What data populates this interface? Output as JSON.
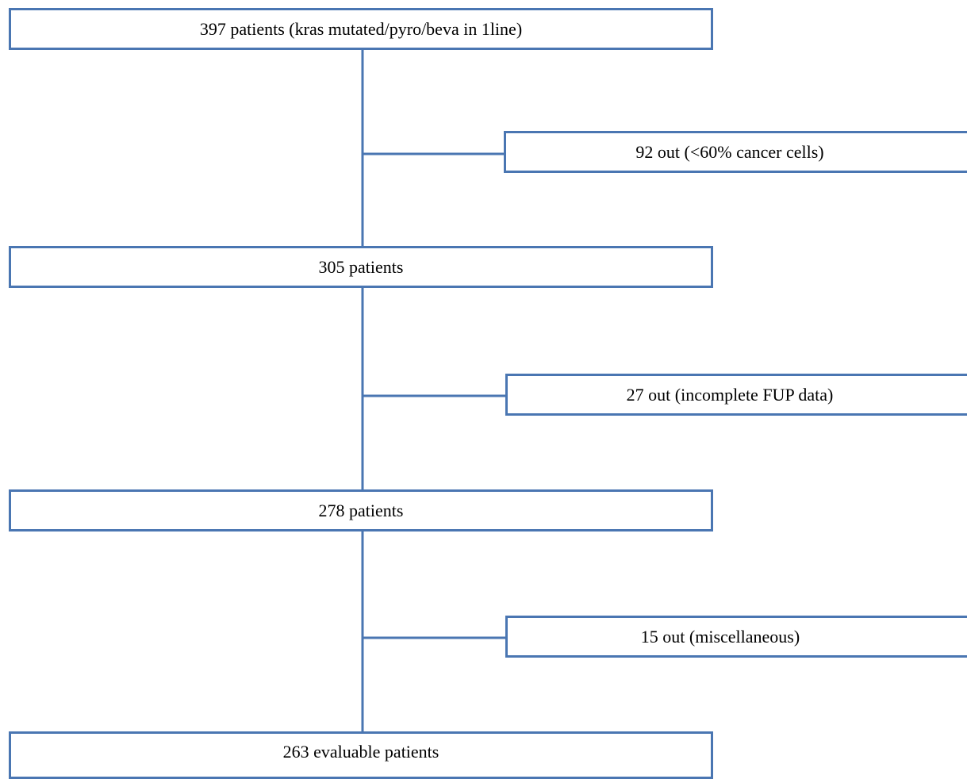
{
  "colors": {
    "line": "#4a76b2",
    "box_border": "#4a76b2",
    "text": "#000000",
    "background": "#ffffff"
  },
  "flow": {
    "steps": [
      {
        "label": "397 patients (kras mutated/pyro/beva in 1line)"
      },
      {
        "label": "305 patients"
      },
      {
        "label": "278 patients"
      },
      {
        "label": "263 evaluable patients"
      }
    ],
    "exclusions": [
      {
        "label": "92 out (<60% cancer cells)"
      },
      {
        "label": "27 out (incomplete FUP data)"
      },
      {
        "label": "15 out (miscellaneous)"
      }
    ]
  }
}
